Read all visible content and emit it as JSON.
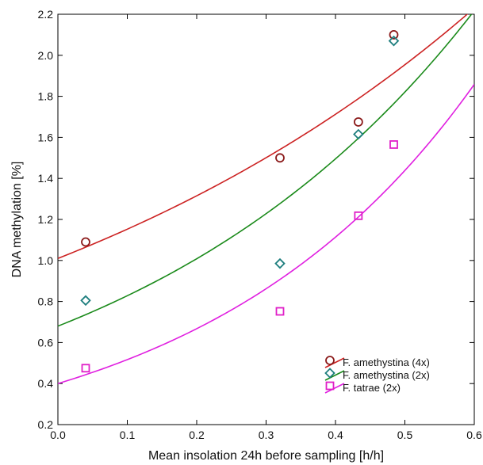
{
  "chart_data": {
    "type": "scatter",
    "xlabel": "Mean insolation 24h before sampling [h/h]",
    "ylabel": "DNA methylation [%]",
    "xlim": [
      0.0,
      0.6
    ],
    "ylim": [
      0.2,
      2.2
    ],
    "xticks": [
      0.0,
      0.1,
      0.2,
      0.3,
      0.4,
      0.5,
      0.6
    ],
    "yticks": [
      0.2,
      0.4,
      0.6,
      0.8,
      1.0,
      1.2,
      1.4,
      1.6,
      1.8,
      2.0,
      2.2
    ],
    "xtick_labels": [
      "0.0",
      "0.1",
      "0.2",
      "0.3",
      "0.4",
      "0.5",
      "0.6"
    ],
    "ytick_labels": [
      "0.2",
      "0.4",
      "0.6",
      "0.8",
      "1.0",
      "1.2",
      "1.4",
      "1.6",
      "1.8",
      "2.0",
      "2.2"
    ],
    "grid": false,
    "legend_position": "bottom-right",
    "series": [
      {
        "name": "F. amethystina (4x)",
        "marker": "circle",
        "marker_color": "#8b1a1a",
        "line_color": "#cc2222",
        "points": [
          [
            0.04,
            1.09
          ],
          [
            0.32,
            1.5
          ],
          [
            0.433,
            1.675
          ],
          [
            0.484,
            2.1
          ]
        ],
        "fit": {
          "model": "exponential",
          "a": 1.01,
          "b": 1.32
        }
      },
      {
        "name": "F. amethystina (2x)",
        "marker": "diamond",
        "marker_color": "#1f7f7f",
        "line_color": "#1a8a1a",
        "points": [
          [
            0.04,
            0.805
          ],
          [
            0.32,
            0.985
          ],
          [
            0.433,
            1.615
          ],
          [
            0.484,
            2.07
          ]
        ],
        "fit": {
          "model": "exponential",
          "a": 0.68,
          "b": 1.97
        }
      },
      {
        "name": "F. tatrae (2x)",
        "marker": "square",
        "marker_color": "#e020c8",
        "line_color": "#e020e0",
        "points": [
          [
            0.04,
            0.475
          ],
          [
            0.32,
            0.752
          ],
          [
            0.433,
            1.218
          ],
          [
            0.484,
            1.565
          ]
        ],
        "fit": {
          "model": "exponential",
          "a": 0.4,
          "b": 2.56
        }
      }
    ]
  }
}
